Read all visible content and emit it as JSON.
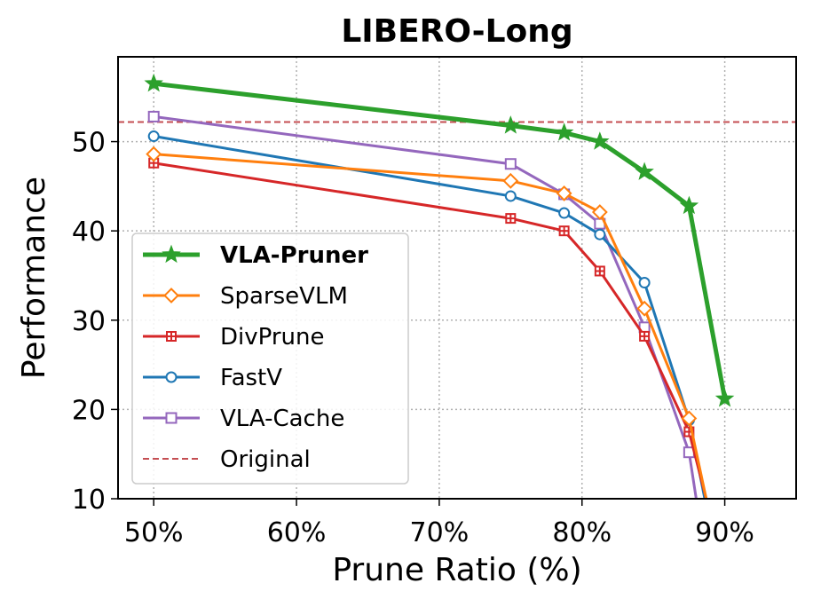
{
  "chart_data": {
    "type": "line",
    "title": "LIBERO-Long",
    "xlabel": "Prune Ratio (%)",
    "ylabel": "Performance",
    "xlim": [
      47.5,
      95
    ],
    "ylim": [
      10,
      59.5
    ],
    "xticks": [
      50,
      60,
      70,
      80,
      90
    ],
    "xtick_labels": [
      "50%",
      "60%",
      "70%",
      "80%",
      "90%"
    ],
    "yticks": [
      10,
      20,
      30,
      40,
      50
    ],
    "ytick_labels": [
      "10",
      "20",
      "30",
      "40",
      "50"
    ],
    "grid": true,
    "legend_position": "lower-left",
    "reference_line": {
      "name": "Original",
      "value": 52.2,
      "color": "#c44e52"
    },
    "series": [
      {
        "name": "VLA-Pruner",
        "color": "#2ca02c",
        "marker": "star",
        "bold": true,
        "x": [
          50,
          75,
          78.75,
          81.25,
          84.375,
          87.5,
          90
        ],
        "y": [
          56.5,
          51.8,
          51.0,
          50.0,
          46.6,
          42.8,
          21.2
        ]
      },
      {
        "name": "SparseVLM",
        "color": "#ff7f0e",
        "marker": "diamond",
        "bold": false,
        "x": [
          50,
          75,
          78.75,
          81.25,
          84.375,
          87.5,
          88.7
        ],
        "y": [
          48.6,
          45.6,
          44.2,
          42.1,
          31.3,
          19.0,
          10
        ]
      },
      {
        "name": "DivPrune",
        "color": "#d62728",
        "marker": "plus-square",
        "bold": false,
        "x": [
          50,
          75,
          78.75,
          81.25,
          84.375,
          87.5,
          88.7
        ],
        "y": [
          47.6,
          41.4,
          40.0,
          35.5,
          28.2,
          17.5,
          10
        ]
      },
      {
        "name": "FastV",
        "color": "#1f77b4",
        "marker": "circle",
        "bold": false,
        "x": [
          50,
          75,
          78.75,
          81.25,
          84.375,
          87.5,
          88.6
        ],
        "y": [
          50.6,
          43.9,
          42.0,
          39.6,
          34.2,
          18.8,
          10
        ]
      },
      {
        "name": "VLA-Cache",
        "color": "#9467bd",
        "marker": "square",
        "bold": false,
        "x": [
          50,
          75,
          78.75,
          81.25,
          84.375,
          87.5,
          88.0
        ],
        "y": [
          52.8,
          47.5,
          44.1,
          40.8,
          29.2,
          15.2,
          10
        ]
      }
    ]
  }
}
